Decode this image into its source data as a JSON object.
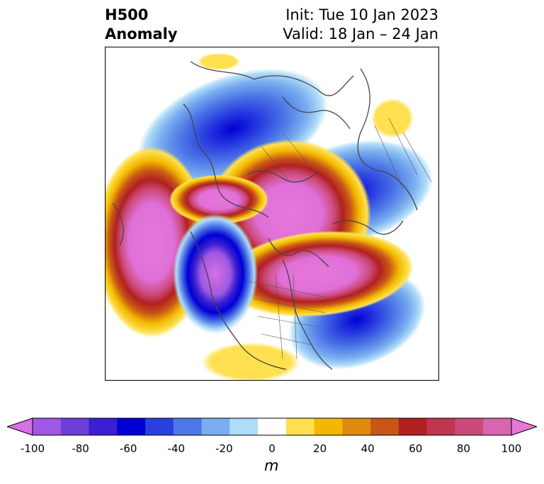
{
  "title": {
    "left_line1": "H500",
    "left_line2": "Anomaly",
    "right_line1": "Init: Tue 10 Jan 2023",
    "right_line2": "Valid: 18 Jan – 24 Jan"
  },
  "colorbar": {
    "ticks": [
      "-100",
      "-80",
      "-60",
      "-40",
      "-20",
      "0",
      "20",
      "40",
      "60",
      "80",
      "100"
    ],
    "unit": "m",
    "colors": [
      "#d670e4",
      "#9f59e2",
      "#6b3fd8",
      "#3b1fd2",
      "#0000d4",
      "#2a3fe0",
      "#4d77e6",
      "#7aaef0",
      "#b0dcf8",
      "#ffffff",
      "#ffe050",
      "#f2b800",
      "#e08a10",
      "#c85618",
      "#b02020",
      "#c03550",
      "#cc4a7a",
      "#d865b0",
      "#e678d8"
    ]
  },
  "map": {
    "anomalies": [
      {
        "name": "negative-anomaly-north-siberia",
        "sign": "negative",
        "intensity": -70
      },
      {
        "name": "negative-anomaly-scandinavia",
        "sign": "negative",
        "intensity": -60
      },
      {
        "name": "negative-anomaly-north-atlantic",
        "sign": "negative",
        "intensity": -60
      },
      {
        "name": "positive-anomaly-north-pacific",
        "sign": "positive",
        "intensity": 100
      },
      {
        "name": "positive-anomaly-west-north-america",
        "sign": "positive",
        "intensity": 90
      },
      {
        "name": "positive-anomaly-arctic",
        "sign": "positive",
        "intensity": 90
      },
      {
        "name": "negative-anomaly-gulf-of-alaska",
        "sign": "negative",
        "intensity": -100
      }
    ]
  }
}
